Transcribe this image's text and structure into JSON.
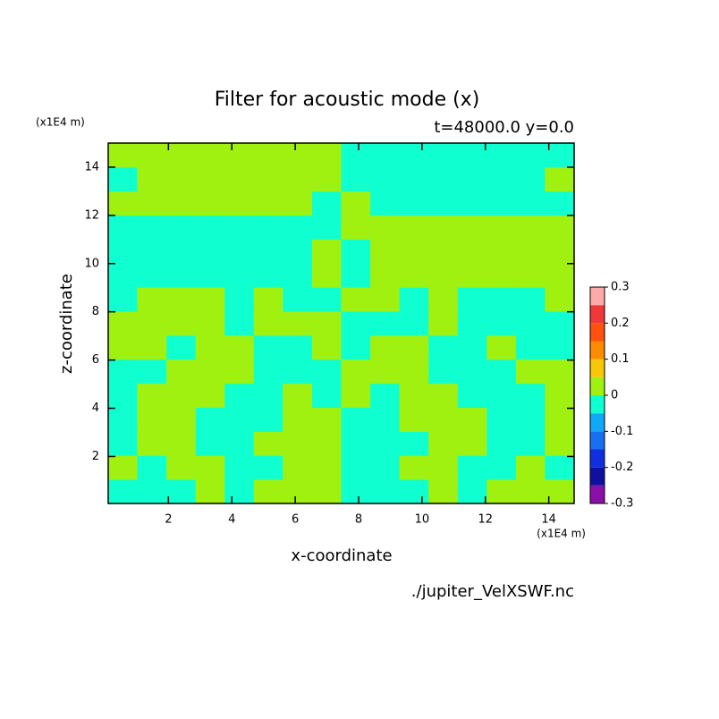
{
  "chart_data": {
    "type": "contour",
    "title": "Filter for acoustic mode (x)",
    "subtitle": "t=48000.0 y=0.0",
    "xlabel": "x-coordinate",
    "ylabel": "z-coordinate",
    "xunit": "(x1E4 m)",
    "yunit": "(x1E4 m)",
    "source": "./jupiter_VelXSWF.nc",
    "xlim": [
      0.1,
      14.8
    ],
    "ylim": [
      0.05,
      15
    ],
    "xticks": [
      2,
      4,
      6,
      8,
      10,
      12,
      14
    ],
    "yticks": [
      2,
      4,
      6,
      8,
      10,
      12,
      14
    ],
    "levels": [
      -0.3,
      -0.25,
      -0.2,
      -0.15,
      -0.1,
      -0.05,
      0,
      0.05,
      0.1,
      0.15,
      0.2,
      0.25,
      0.3
    ],
    "colors": [
      "#8a10a8",
      "#1010a0",
      "#1030e0",
      "#1870f0",
      "#10a8f8",
      "#10ffd0",
      "#a0f010",
      "#f8c808",
      "#ff8c00",
      "#ff5010",
      "#f03838",
      "#ffaaaa"
    ],
    "cbticks": [
      -0.3,
      -0.2,
      -0.1,
      0,
      0.1,
      0.2,
      0.3
    ],
    "z": [
      [
        -0.025,
        -0.025,
        -0.025,
        0.025,
        -0.025,
        0.025,
        0.025,
        0.025,
        -0.025,
        -0.025,
        -0.025,
        0.025,
        -0.025,
        0.025,
        0.025,
        0.025
      ],
      [
        0.025,
        -0.025,
        0.025,
        0.025,
        -0.025,
        -0.025,
        0.025,
        0.025,
        -0.025,
        -0.025,
        0.025,
        0.025,
        -0.025,
        -0.025,
        0.025,
        -0.025
      ],
      [
        -0.025,
        0.025,
        0.025,
        -0.025,
        -0.025,
        0.025,
        0.025,
        0.025,
        -0.025,
        -0.025,
        -0.025,
        0.025,
        0.025,
        -0.025,
        -0.025,
        0.025
      ],
      [
        -0.025,
        0.025,
        0.025,
        -0.025,
        -0.025,
        -0.025,
        0.025,
        0.025,
        -0.025,
        -0.025,
        0.025,
        0.025,
        0.025,
        -0.025,
        -0.025,
        0.025
      ],
      [
        -0.025,
        0.025,
        0.025,
        0.025,
        -0.025,
        -0.025,
        0.025,
        -0.025,
        0.025,
        -0.025,
        0.025,
        0.025,
        -0.025,
        -0.025,
        -0.025,
        0.025
      ],
      [
        -0.025,
        -0.025,
        0.025,
        0.025,
        0.025,
        -0.025,
        -0.025,
        -0.025,
        0.025,
        0.025,
        0.025,
        -0.025,
        -0.025,
        -0.025,
        0.025,
        0.025
      ],
      [
        0.025,
        0.025,
        -0.025,
        0.025,
        0.025,
        -0.025,
        -0.025,
        0.025,
        -0.025,
        0.025,
        0.025,
        -0.025,
        -0.025,
        0.025,
        -0.025,
        -0.025
      ],
      [
        0.025,
        0.025,
        0.025,
        0.025,
        -0.025,
        0.025,
        0.025,
        0.025,
        -0.025,
        -0.025,
        -0.025,
        0.025,
        -0.025,
        -0.025,
        -0.025,
        -0.025
      ],
      [
        -0.025,
        0.025,
        0.025,
        0.025,
        -0.025,
        0.025,
        -0.025,
        -0.025,
        0.025,
        0.025,
        -0.025,
        0.025,
        -0.025,
        -0.025,
        -0.025,
        0.025
      ],
      [
        -0.025,
        -0.025,
        -0.025,
        -0.025,
        -0.025,
        -0.025,
        -0.025,
        0.025,
        -0.025,
        0.025,
        0.025,
        0.025,
        0.025,
        0.025,
        0.025,
        0.025
      ],
      [
        -0.025,
        -0.025,
        -0.025,
        -0.025,
        -0.025,
        -0.025,
        -0.025,
        0.025,
        -0.025,
        0.025,
        0.025,
        0.025,
        0.025,
        0.025,
        0.025,
        0.025
      ],
      [
        -0.025,
        -0.025,
        -0.025,
        -0.025,
        -0.025,
        -0.025,
        -0.025,
        -0.025,
        0.025,
        0.025,
        0.025,
        0.025,
        0.025,
        0.025,
        0.025,
        0.025
      ],
      [
        0.025,
        0.025,
        0.025,
        0.025,
        0.025,
        0.025,
        0.025,
        -0.025,
        0.025,
        -0.025,
        -0.025,
        -0.025,
        -0.025,
        -0.025,
        -0.025,
        -0.025
      ],
      [
        -0.025,
        0.025,
        0.025,
        0.025,
        0.025,
        0.025,
        0.025,
        0.025,
        -0.025,
        -0.025,
        -0.025,
        -0.025,
        -0.025,
        -0.025,
        -0.025,
        0.025
      ],
      [
        0.025,
        0.025,
        0.025,
        0.025,
        0.025,
        0.025,
        0.025,
        0.025,
        -0.025,
        -0.025,
        -0.025,
        -0.025,
        -0.025,
        -0.025,
        -0.025,
        -0.025
      ]
    ]
  }
}
